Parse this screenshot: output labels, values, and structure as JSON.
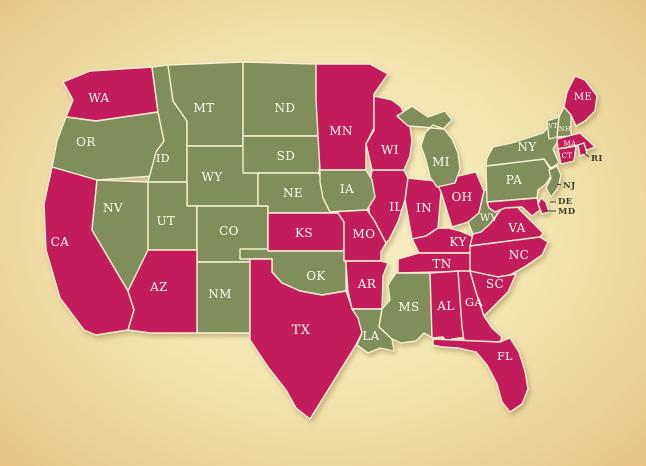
{
  "background": {
    "center_color": "#f7f1c7",
    "edge_color": "#e5c383"
  },
  "map": {
    "border_color": "#f5efd2",
    "outside_label_color": "#3e3d31",
    "categories": {
      "pink": "#c31e5b",
      "green": "#7f8e5a"
    },
    "states": [
      {
        "id": "WA",
        "label": "WA",
        "category": "pink"
      },
      {
        "id": "OR",
        "label": "OR",
        "category": "green"
      },
      {
        "id": "CA",
        "label": "CA",
        "category": "pink"
      },
      {
        "id": "ID",
        "label": "ID",
        "category": "green"
      },
      {
        "id": "MT",
        "label": "MT",
        "category": "green"
      },
      {
        "id": "WY",
        "label": "WY",
        "category": "green"
      },
      {
        "id": "NV",
        "label": "NV",
        "category": "green"
      },
      {
        "id": "UT",
        "label": "UT",
        "category": "green"
      },
      {
        "id": "CO",
        "label": "CO",
        "category": "green"
      },
      {
        "id": "NM",
        "label": "NM",
        "category": "green"
      },
      {
        "id": "AZ",
        "label": "AZ",
        "category": "pink"
      },
      {
        "id": "ND",
        "label": "ND",
        "category": "green"
      },
      {
        "id": "SD",
        "label": "SD",
        "category": "green"
      },
      {
        "id": "NE",
        "label": "NE",
        "category": "green"
      },
      {
        "id": "KS",
        "label": "KS",
        "category": "pink"
      },
      {
        "id": "OK",
        "label": "OK",
        "category": "green"
      },
      {
        "id": "TX",
        "label": "TX",
        "category": "pink"
      },
      {
        "id": "MN",
        "label": "MN",
        "category": "pink"
      },
      {
        "id": "IL",
        "label": "IL",
        "category": "pink"
      },
      {
        "id": "IN",
        "label": "IN",
        "category": "pink"
      },
      {
        "id": "OH",
        "label": "OH",
        "category": "pink"
      },
      {
        "id": "WI",
        "label": "WI",
        "category": "pink"
      },
      {
        "id": "MI",
        "label": "MI",
        "category": "green"
      },
      {
        "id": "IA",
        "label": "IA",
        "category": "green"
      },
      {
        "id": "MO",
        "label": "MO",
        "category": "pink"
      },
      {
        "id": "KY",
        "label": "KY",
        "category": "pink"
      },
      {
        "id": "TN",
        "label": "TN",
        "category": "pink"
      },
      {
        "id": "AR",
        "label": "AR",
        "category": "pink"
      },
      {
        "id": "LA",
        "label": "LA",
        "category": "green"
      },
      {
        "id": "MS",
        "label": "MS",
        "category": "green"
      },
      {
        "id": "AL",
        "label": "AL",
        "category": "pink"
      },
      {
        "id": "GA",
        "label": "GA",
        "category": "pink"
      },
      {
        "id": "FL",
        "label": "FL",
        "category": "pink"
      },
      {
        "id": "WV",
        "label": "WV",
        "category": "green"
      },
      {
        "id": "VA",
        "label": "VA",
        "category": "pink"
      },
      {
        "id": "NC",
        "label": "NC",
        "category": "pink"
      },
      {
        "id": "SC",
        "label": "SC",
        "category": "pink"
      },
      {
        "id": "PA",
        "label": "PA",
        "category": "green"
      },
      {
        "id": "NY",
        "label": "NY",
        "category": "green"
      },
      {
        "id": "MD",
        "label": "MD",
        "category": "pink",
        "label_outside": true
      },
      {
        "id": "DE",
        "label": "DE",
        "category": "pink",
        "label_outside": true
      },
      {
        "id": "NJ",
        "label": "NJ",
        "category": "green",
        "label_outside": true
      },
      {
        "id": "VT",
        "label": "VT",
        "category": "green"
      },
      {
        "id": "NH",
        "label": "NH",
        "category": "green"
      },
      {
        "id": "MA",
        "label": "MA",
        "category": "pink"
      },
      {
        "id": "CT",
        "label": "CT",
        "category": "pink"
      },
      {
        "id": "RI",
        "label": "RI",
        "category": "pink",
        "label_outside": true
      },
      {
        "id": "ME",
        "label": "ME",
        "category": "pink"
      }
    ]
  }
}
